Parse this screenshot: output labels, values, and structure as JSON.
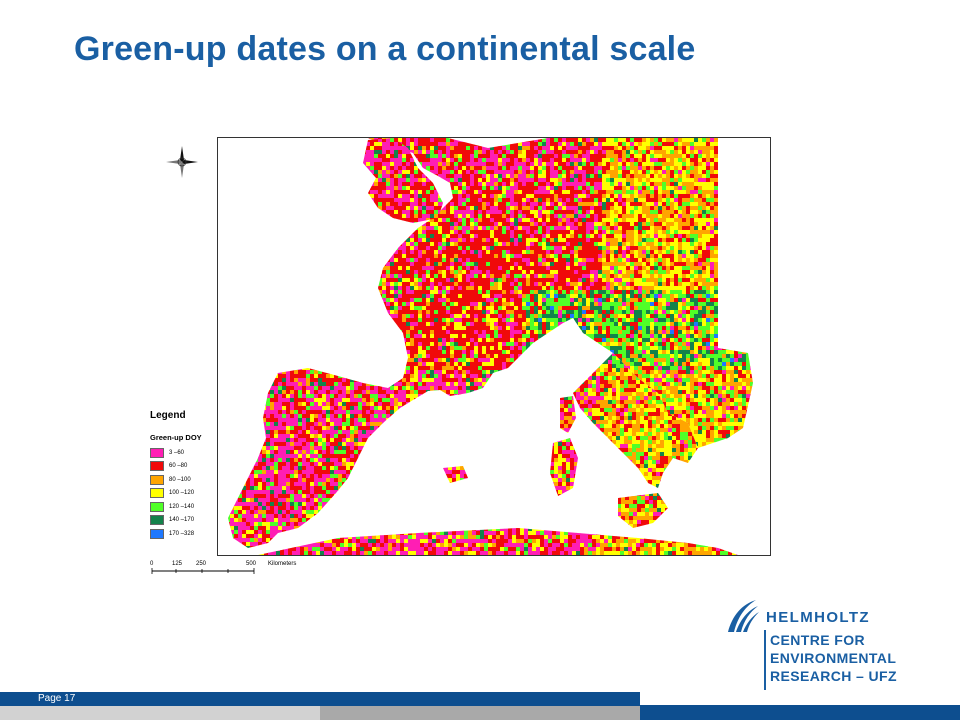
{
  "title": "Green-up dates on a continental scale",
  "figure": {
    "legend_title": "Legend",
    "legend_subtitle": "Green-up DOY",
    "legend_items": [
      {
        "label": "3 –60",
        "color": "#ff1eb4"
      },
      {
        "label": "60 –80",
        "color": "#f00a0a"
      },
      {
        "label": "80 –100",
        "color": "#ffa500"
      },
      {
        "label": "100 –120",
        "color": "#ffff00"
      },
      {
        "label": "120 –140",
        "color": "#50ff28"
      },
      {
        "label": "140 –170",
        "color": "#14824b"
      },
      {
        "label": "170 –328",
        "color": "#1e78ff"
      }
    ],
    "scale_ticks": [
      "0",
      "125",
      "250",
      "500"
    ],
    "scale_unit": "Kilometers",
    "north_arrow_icon": "north-arrow-icon"
  },
  "logo": {
    "name": "HELMHOLTZ",
    "line1": "CENTRE FOR",
    "line2": "ENVIRONMENTAL",
    "line3": "RESEARCH – UFZ"
  },
  "footer": {
    "page_label": "Page 17"
  },
  "colors": {
    "brand_blue": "#1a5fa3",
    "sea": "#ffffff"
  }
}
